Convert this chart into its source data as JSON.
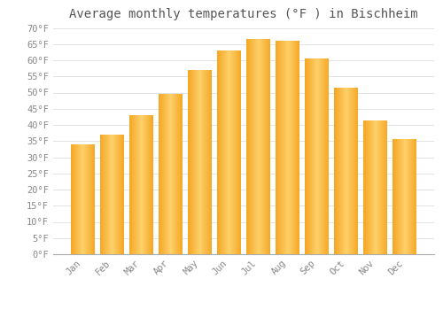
{
  "title": "Average monthly temperatures (°F ) in Bischheim",
  "months": [
    "Jan",
    "Feb",
    "Mar",
    "Apr",
    "May",
    "Jun",
    "Jul",
    "Aug",
    "Sep",
    "Oct",
    "Nov",
    "Dec"
  ],
  "values": [
    34,
    37,
    43,
    49.5,
    57,
    63,
    66.5,
    66,
    60.5,
    51.5,
    41.5,
    35.5
  ],
  "bar_color_left": "#F5A623",
  "bar_color_center": "#FDD06A",
  "bar_color_right": "#F5A623",
  "ylim": [
    0,
    70
  ],
  "yticks": [
    0,
    5,
    10,
    15,
    20,
    25,
    30,
    35,
    40,
    45,
    50,
    55,
    60,
    65,
    70
  ],
  "ylabel_suffix": "°F",
  "background_color": "#FFFFFF",
  "grid_color": "#DDDDDD",
  "title_fontsize": 10,
  "tick_fontsize": 7.5,
  "bar_width": 0.82
}
